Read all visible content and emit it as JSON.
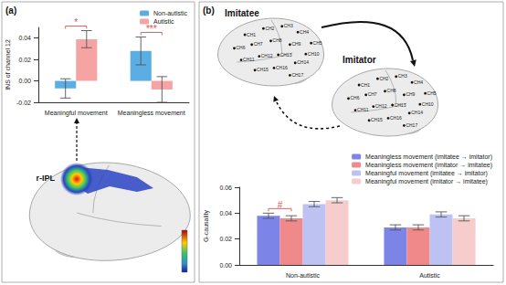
{
  "figure": {
    "region": "r-IPL",
    "imitatee": "Imitatee",
    "imitator": "Imitator",
    "channels": [
      "CH1",
      "CH2",
      "CH3",
      "CH4",
      "CH5",
      "CH6",
      "CH7",
      "CH8",
      "CH9",
      "CH10",
      "CH11",
      "CH12",
      "CH13",
      "CH14",
      "CH15",
      "CH16",
      "CH17"
    ]
  },
  "chart_data": [
    {
      "type": "bar",
      "panel": "(a)",
      "y_label": "INS of channel 12",
      "categories": [
        "Meaningful movement",
        "Meaningless movement"
      ],
      "series": [
        {
          "name": "Non-autistic",
          "color": "#5aaee3",
          "values": [
            -0.007,
            0.028
          ],
          "errors": [
            0.009,
            0.013
          ]
        },
        {
          "name": "Autistic",
          "color": "#f5a3a3",
          "values": [
            0.039,
            -0.008
          ],
          "errors": [
            0.008,
            0.012
          ]
        }
      ],
      "ylim": [
        -0.02,
        0.05
      ],
      "yticks": [
        {
          "value": -0.02,
          "label": "-0.02"
        },
        {
          "value": 0,
          "label": "0.00"
        },
        {
          "value": 0.02,
          "label": "0.02"
        },
        {
          "value": 0.04,
          "label": "0.04"
        }
      ],
      "grid": false,
      "legend": "upper right",
      "annotations": [
        {
          "text": "*",
          "category": "Meaningful movement",
          "series": [
            "Non-autistic",
            "Autistic"
          ]
        },
        {
          "text": "***",
          "category": "Meaningless movement",
          "series": [
            "Non-autistic",
            "Autistic"
          ]
        }
      ]
    },
    {
      "type": "bar",
      "panel": "(b)",
      "y_label": "G-causality",
      "categories": [
        "Non-autistic",
        "Autistic"
      ],
      "series": [
        {
          "name": "Meaningless movement (imitatee → imitator)",
          "color": "#7d84e8",
          "values": [
            0.038,
            0.029
          ],
          "errors": [
            0.002,
            0.002
          ]
        },
        {
          "name": "Meaningless movement (imitator → imitatee)",
          "color": "#f08a8a",
          "values": [
            0.036,
            0.029
          ],
          "errors": [
            0.002,
            0.002
          ]
        },
        {
          "name": "Meaningful movement (imitatee → imitator)",
          "color": "#bdc2f2",
          "values": [
            0.047,
            0.039
          ],
          "errors": [
            0.002,
            0.002
          ]
        },
        {
          "name": "Meaningful movement (imitator → imitatee)",
          "color": "#f7cccc",
          "values": [
            0.05,
            0.036
          ],
          "errors": [
            0.002,
            0.002
          ]
        }
      ],
      "ylim": [
        0,
        0.06
      ],
      "yticks": [
        {
          "value": 0,
          "label": "0.00"
        },
        {
          "value": 0.02,
          "label": "0.02"
        },
        {
          "value": 0.04,
          "label": "0.04"
        },
        {
          "value": 0.06,
          "label": "0.06"
        }
      ],
      "grid": false,
      "legend": "upper right",
      "annotations": [
        {
          "text": "#",
          "category": "Non-autistic",
          "series": [
            "Meaningless movement (imitatee → imitator)",
            "Meaningless movement (imitator → imitatee)"
          ]
        }
      ]
    }
  ]
}
